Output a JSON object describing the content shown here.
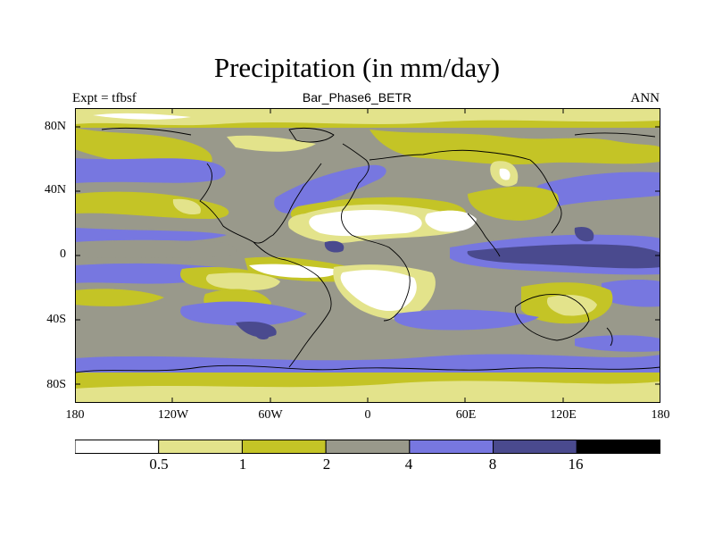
{
  "title": "Precipitation (in mm/day)",
  "left_string": "Expt = tfbsf",
  "center_string": "Bar_Phase6_BETR",
  "right_string": "ANN",
  "lat_ticks": [
    "80N",
    "40N",
    "0",
    "40S",
    "80S"
  ],
  "lon_ticks": [
    "180",
    "120W",
    "60W",
    "0",
    "60E",
    "120E",
    "180"
  ],
  "colorbar": {
    "levels": [
      "0.5",
      "1",
      "2",
      "4",
      "8",
      "16"
    ],
    "colors": [
      "#ffffff",
      "#e3e38b",
      "#c4c426",
      "#99998b",
      "#7777e0",
      "#4a4a8e",
      "#000000"
    ]
  },
  "chart_data": {
    "type": "heatmap",
    "title": "Precipitation (in mm/day)",
    "subtitle": "Bar_Phase6_BETR",
    "left_label": "Expt = tfbsf",
    "right_label": "ANN",
    "x": [
      "180",
      "120W",
      "60W",
      "0",
      "60E",
      "120E",
      "180"
    ],
    "y": [
      "80N",
      "40N",
      "0",
      "40S",
      "80S"
    ],
    "xlim": [
      -180,
      180
    ],
    "ylim": [
      -90,
      90
    ],
    "contour_levels": [
      0.5,
      1,
      2,
      4,
      8,
      16
    ],
    "units": "mm/day",
    "colorbar_placement": "bottom"
  }
}
